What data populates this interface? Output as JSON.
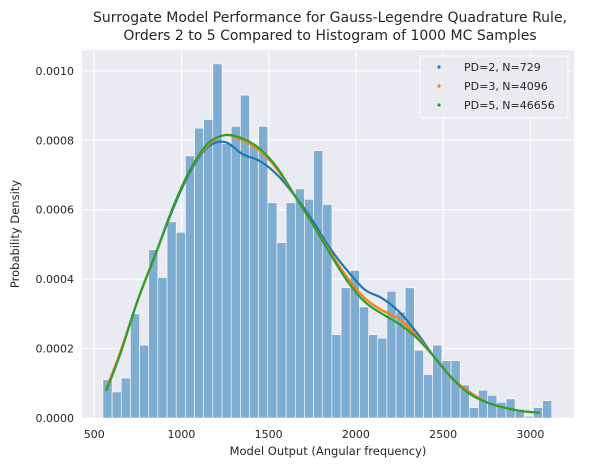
{
  "chart_data": {
    "type": "bar",
    "title": "Surrogate Model Performance for Gauss-Legendre Quadrature Rule,",
    "subtitle": "Orders 2 to 5 Compared to Histogram of 1000 MC Samples",
    "xlabel": "Model Output (Angular frequency)",
    "ylabel": "Probability Density",
    "xlim": [
      430,
      3250
    ],
    "ylim": [
      0,
      0.00106
    ],
    "grid": true,
    "legend_position": "top-right",
    "x_ticks": [
      {
        "value": 500,
        "label": "500"
      },
      {
        "value": 1000,
        "label": "1000"
      },
      {
        "value": 1500,
        "label": "1500"
      },
      {
        "value": 2000,
        "label": "2000"
      },
      {
        "value": 2500,
        "label": "2500"
      },
      {
        "value": 3000,
        "label": "3000"
      }
    ],
    "y_ticks": [
      {
        "value": 0,
        "label": "0.0000"
      },
      {
        "value": 0.0002,
        "label": "0.0002"
      },
      {
        "value": 0.0004,
        "label": "0.0004"
      },
      {
        "value": 0.0006,
        "label": "0.0006"
      },
      {
        "value": 0.0008,
        "label": "0.0008"
      },
      {
        "value": 0.001,
        "label": "0.0010"
      }
    ],
    "histogram": {
      "bin_start": 550,
      "bin_width": 52.5,
      "color": "#7fadd1",
      "values": [
        0.00011,
        7.5e-05,
        0.000115,
        0.0003,
        0.00021,
        0.000485,
        0.000405,
        0.000565,
        0.000535,
        0.000755,
        0.000835,
        0.00086,
        0.00102,
        0.00079,
        0.00084,
        0.00093,
        0.000785,
        0.00084,
        0.00062,
        0.000505,
        0.00062,
        0.00066,
        0.00063,
        0.00077,
        0.000615,
        0.00024,
        0.000375,
        0.000425,
        0.00032,
        0.00024,
        0.00023,
        0.000365,
        0.000305,
        0.000375,
        0.000195,
        0.000125,
        0.00021,
        0.000165,
        0.000165,
        9.5e-05,
        3e-05,
        8e-05,
        6.5e-05,
        4.5e-05,
        5.5e-05,
        2.5e-05,
        5e-06,
        3e-05,
        5e-05
      ]
    },
    "series": [
      {
        "name": "PD=2, N=729",
        "color": "#1f77b4",
        "x": [
          570,
          650,
          750,
          850,
          950,
          1050,
          1150,
          1250,
          1350,
          1450,
          1550,
          1650,
          1750,
          1850,
          1950,
          2050,
          2150,
          2250,
          2350,
          2450,
          2550,
          2650,
          2750,
          2850,
          2950,
          3050
        ],
        "y": [
          8.5e-05,
          0.00019,
          0.00034,
          0.00047,
          0.0006,
          0.00071,
          0.00078,
          0.000795,
          0.00076,
          0.00074,
          0.0007,
          0.00064,
          0.00057,
          0.00049,
          0.000425,
          0.00037,
          0.000345,
          0.000305,
          0.000245,
          0.000175,
          0.000115,
          7.5e-05,
          4.5e-05,
          3e-05,
          2e-05,
          1.5e-05
        ]
      },
      {
        "name": "PD=3, N=4096",
        "color": "#ff7f0e",
        "x": [
          570,
          650,
          750,
          850,
          950,
          1050,
          1150,
          1250,
          1350,
          1450,
          1550,
          1650,
          1750,
          1850,
          1950,
          2050,
          2150,
          2250,
          2350,
          2450,
          2550,
          2650,
          2750,
          2850,
          2950,
          3050
        ],
        "y": [
          8.5e-05,
          0.00019,
          0.00034,
          0.00047,
          0.000605,
          0.000715,
          0.000785,
          0.000815,
          0.0008,
          0.00077,
          0.000715,
          0.00064,
          0.00056,
          0.00048,
          0.000405,
          0.000345,
          0.00031,
          0.000285,
          0.000235,
          0.000175,
          0.000115,
          7.5e-05,
          4.5e-05,
          3e-05,
          2e-05,
          1.5e-05
        ]
      },
      {
        "name": "PD=5, N=46656",
        "color": "#2ca02c",
        "x": [
          570,
          650,
          750,
          850,
          950,
          1050,
          1150,
          1250,
          1350,
          1450,
          1550,
          1650,
          1750,
          1850,
          1950,
          2050,
          2150,
          2250,
          2350,
          2450,
          2550,
          2650,
          2750,
          2850,
          2950,
          3050
        ],
        "y": [
          8e-05,
          0.000185,
          0.00034,
          0.00047,
          0.000605,
          0.000715,
          0.00079,
          0.000815,
          0.000805,
          0.000775,
          0.00072,
          0.00064,
          0.00056,
          0.000475,
          0.000395,
          0.000335,
          0.0003,
          0.00027,
          0.00023,
          0.000175,
          0.000115,
          7e-05,
          4.5e-05,
          3e-05,
          2e-05,
          1.5e-05
        ]
      }
    ]
  }
}
